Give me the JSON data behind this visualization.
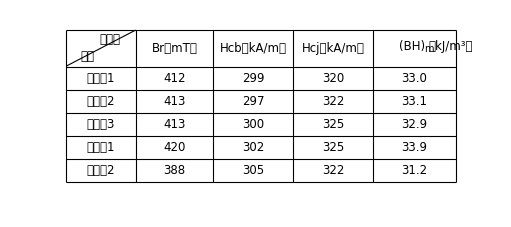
{
  "col_headers": [
    "Br（mT）",
    "Hcb（kA/m）",
    "Hcj（kA/m）",
    "(BH)m　（kJ/m³）"
  ],
  "row_labels": [
    "实施例1",
    "实施例2",
    "实施例3",
    "对比例1",
    "对比例2"
  ],
  "data": [
    [
      "412",
      "299",
      "320",
      "33.0"
    ],
    [
      "413",
      "297",
      "322",
      "33.1"
    ],
    [
      "413",
      "300",
      "325",
      "32.9"
    ],
    [
      "420",
      "302",
      "325",
      "33.9"
    ],
    [
      "388",
      "305",
      "322",
      "31.2"
    ]
  ],
  "header_top_left_line1": "磁性能",
  "header_top_left_line2": "编号",
  "bg_color": "#ffffff",
  "text_color": "#000000",
  "line_color": "#000000",
  "font_size": 8.5,
  "header_font_size": 8.5,
  "fig_width": 5.11,
  "fig_height": 2.27,
  "dpi": 100
}
